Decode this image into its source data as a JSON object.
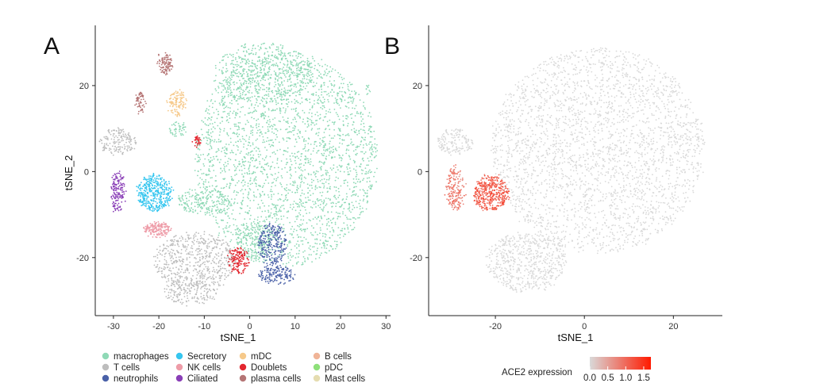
{
  "chart_data": [
    {
      "panel": "A",
      "type": "scatter",
      "xlabel": "tSNE_1",
      "ylabel": "tSNE_2",
      "xlim": [
        -34,
        31
      ],
      "ylim": [
        -33.5,
        34
      ],
      "xticks": [
        -30,
        -20,
        -10,
        0,
        10,
        20,
        30
      ],
      "yticks": [
        -20,
        0,
        20
      ],
      "grid": false,
      "legend": "bottom",
      "series": [
        {
          "name": "macrophages",
          "color": "#8fd9b6",
          "clusters": [
            {
              "cx": 8,
              "cy": 3,
              "rx": 20,
              "ry": 25,
              "n": 2600
            },
            {
              "cx": 3,
              "cy": 23,
              "rx": 11,
              "ry": 7,
              "n": 500
            },
            {
              "cx": -10,
              "cy": -7,
              "rx": 6,
              "ry": 3,
              "n": 200
            },
            {
              "cx": 1,
              "cy": -16,
              "rx": 4,
              "ry": 5,
              "n": 200
            },
            {
              "cx": -16,
              "cy": 10,
              "rx": 2,
              "ry": 1.5,
              "n": 50
            },
            {
              "cx": 26,
              "cy": 19,
              "rx": 0.4,
              "ry": 0.8,
              "n": 10
            }
          ]
        },
        {
          "name": "T cells",
          "color": "#bdbdbd",
          "clusters": [
            {
              "cx": -12,
              "cy": -21,
              "rx": 9,
              "ry": 7,
              "n": 600
            },
            {
              "cx": -13,
              "cy": -28,
              "rx": 6,
              "ry": 3,
              "n": 150
            },
            {
              "cx": -29,
              "cy": 7,
              "rx": 4,
              "ry": 3,
              "n": 160
            }
          ]
        },
        {
          "name": "neutrophils",
          "color": "#4a61a8",
          "clusters": [
            {
              "cx": 5,
              "cy": -17,
              "rx": 3,
              "ry": 5,
              "n": 250
            },
            {
              "cx": 6,
              "cy": -24,
              "rx": 4,
              "ry": 2,
              "n": 150
            }
          ]
        },
        {
          "name": "Secretory",
          "color": "#36c6ef",
          "clusters": [
            {
              "cx": -21,
              "cy": -5,
              "rx": 4,
              "ry": 4,
              "n": 400
            }
          ]
        },
        {
          "name": "NK cells",
          "color": "#ee9ca8",
          "clusters": [
            {
              "cx": -20.5,
              "cy": -13.5,
              "rx": 3,
              "ry": 1.6,
              "n": 180
            }
          ]
        },
        {
          "name": "Ciliated",
          "color": "#8a3fb7",
          "clusters": [
            {
              "cx": -29,
              "cy": -5,
              "rx": 1.5,
              "ry": 5,
              "n": 160
            }
          ]
        },
        {
          "name": "mDC",
          "color": "#f6c98a",
          "clusters": [
            {
              "cx": -16,
              "cy": 16,
              "rx": 2,
              "ry": 3,
              "n": 120
            }
          ]
        },
        {
          "name": "Doublets",
          "color": "#e3272f",
          "clusters": [
            {
              "cx": -2.5,
              "cy": -20.5,
              "rx": 2,
              "ry": 3,
              "n": 150
            },
            {
              "cx": -11.5,
              "cy": 7,
              "rx": 0.8,
              "ry": 1.2,
              "n": 30
            }
          ]
        },
        {
          "name": "plasma cells",
          "color": "#b57575",
          "clusters": [
            {
              "cx": -18.5,
              "cy": 25,
              "rx": 1.5,
              "ry": 2.5,
              "n": 100
            },
            {
              "cx": -24,
              "cy": 16,
              "rx": 1,
              "ry": 2.5,
              "n": 60
            }
          ]
        },
        {
          "name": "B cells",
          "color": "#f0b497",
          "clusters": []
        },
        {
          "name": "pDC",
          "color": "#8ee07a",
          "clusters": []
        },
        {
          "name": "Mast cells",
          "color": "#e5dcb0",
          "clusters": []
        }
      ]
    },
    {
      "panel": "B",
      "type": "scatter",
      "xlabel": "tSNE_1",
      "ylabel": "",
      "xlim": [
        -35,
        31
      ],
      "ylim": [
        -33.5,
        34
      ],
      "xticks": [
        -20,
        0,
        20
      ],
      "yticks": [
        -20,
        0,
        20
      ],
      "grid": false,
      "colorbar": {
        "title": "ACE2 expression",
        "ticks": [
          "0.0",
          "0.5",
          "1.0",
          "1.5"
        ],
        "range": [
          0,
          1.7
        ],
        "low_color": "#d9d9d9",
        "high_color": "#ff1a00"
      },
      "series": [
        {
          "name": "ACE2 expression",
          "clusters": [
            {
              "cx": 3,
              "cy": 5,
              "rx": 24,
              "ry": 24,
              "n": 2800,
              "value": 0
            },
            {
              "cx": -13,
              "cy": -21,
              "rx": 9,
              "ry": 7,
              "n": 600,
              "value": 0
            },
            {
              "cx": -29,
              "cy": 7,
              "rx": 4,
              "ry": 3,
              "n": 160,
              "value": 0
            },
            {
              "cx": -21,
              "cy": -5,
              "rx": 4,
              "ry": 4,
              "n": 420,
              "value": 1.3
            },
            {
              "cx": -29,
              "cy": -4,
              "rx": 2,
              "ry": 5,
              "n": 180,
              "value": 1.0
            }
          ]
        }
      ]
    }
  ]
}
